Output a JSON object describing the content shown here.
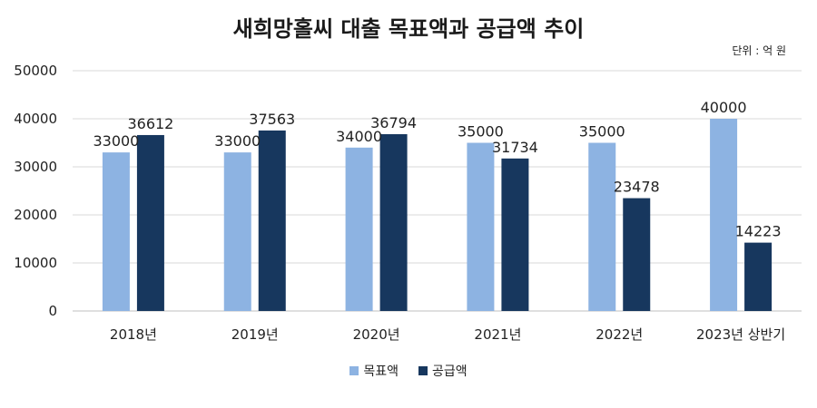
{
  "chart_data": {
    "type": "bar",
    "title": "새희망홀씨 대출 목표액과 공급액 추이",
    "unit_label": "단위 : 억 원",
    "categories": [
      "2018년",
      "2019년",
      "2020년",
      "2021년",
      "2022년",
      "2023년 상반기"
    ],
    "series": [
      {
        "name": "목표액",
        "color": "#8db3e2",
        "values": [
          33000,
          33000,
          34000,
          35000,
          35000,
          40000
        ]
      },
      {
        "name": "공급액",
        "color": "#17375e",
        "values": [
          36612,
          37563,
          36794,
          31734,
          23478,
          14223
        ]
      }
    ],
    "ylim": [
      0,
      50000
    ],
    "yticks": [
      0,
      10000,
      20000,
      30000,
      40000,
      50000
    ],
    "grid": true,
    "legend_position": "bottom"
  }
}
